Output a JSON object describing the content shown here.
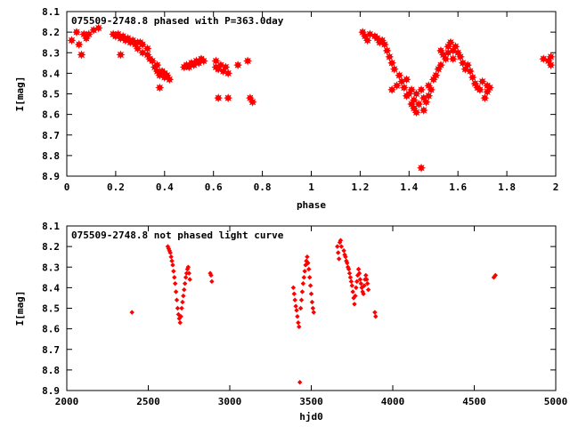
{
  "chart_data": [
    {
      "type": "scatter",
      "title": "075509-2748.8 phased with P=363.0day",
      "xlabel": "phase",
      "ylabel": "I[mag]",
      "xlim": [
        0,
        2
      ],
      "ylim": [
        8.1,
        8.9
      ],
      "y_inverted": true,
      "xticks": [
        "0",
        "0.2",
        "0.4",
        "0.6",
        "0.8",
        "1",
        "1.2",
        "1.4",
        "1.6",
        "1.8",
        "2"
      ],
      "yticks": [
        "8.1",
        "8.2",
        "8.3",
        "8.4",
        "8.5",
        "8.6",
        "8.7",
        "8.8",
        "8.9"
      ],
      "grid": false,
      "marker": "star",
      "color": "#ff0000",
      "points": [
        [
          0.02,
          8.24
        ],
        [
          0.04,
          8.2
        ],
        [
          0.05,
          8.26
        ],
        [
          0.06,
          8.31
        ],
        [
          0.07,
          8.21
        ],
        [
          0.08,
          8.23
        ],
        [
          0.09,
          8.21
        ],
        [
          0.11,
          8.19
        ],
        [
          0.13,
          8.18
        ],
        [
          0.19,
          8.21
        ],
        [
          0.2,
          8.22
        ],
        [
          0.21,
          8.21
        ],
        [
          0.22,
          8.23
        ],
        [
          0.22,
          8.31
        ],
        [
          0.23,
          8.22
        ],
        [
          0.24,
          8.24
        ],
        [
          0.25,
          8.23
        ],
        [
          0.26,
          8.25
        ],
        [
          0.27,
          8.24
        ],
        [
          0.28,
          8.26
        ],
        [
          0.29,
          8.25
        ],
        [
          0.29,
          8.28
        ],
        [
          0.3,
          8.25
        ],
        [
          0.31,
          8.26
        ],
        [
          0.31,
          8.3
        ],
        [
          0.33,
          8.28
        ],
        [
          0.33,
          8.31
        ],
        [
          0.34,
          8.33
        ],
        [
          0.35,
          8.34
        ],
        [
          0.36,
          8.37
        ],
        [
          0.37,
          8.36
        ],
        [
          0.37,
          8.39
        ],
        [
          0.38,
          8.41
        ],
        [
          0.38,
          8.47
        ],
        [
          0.39,
          8.39
        ],
        [
          0.4,
          8.4
        ],
        [
          0.4,
          8.42
        ],
        [
          0.41,
          8.41
        ],
        [
          0.42,
          8.43
        ],
        [
          0.48,
          8.37
        ],
        [
          0.49,
          8.36
        ],
        [
          0.5,
          8.37
        ],
        [
          0.51,
          8.35
        ],
        [
          0.52,
          8.36
        ],
        [
          0.53,
          8.34
        ],
        [
          0.54,
          8.35
        ],
        [
          0.55,
          8.33
        ],
        [
          0.56,
          8.34
        ],
        [
          0.61,
          8.34
        ],
        [
          0.61,
          8.37
        ],
        [
          0.62,
          8.38
        ],
        [
          0.62,
          8.52
        ],
        [
          0.63,
          8.36
        ],
        [
          0.64,
          8.39
        ],
        [
          0.65,
          8.37
        ],
        [
          0.66,
          8.4
        ],
        [
          0.66,
          8.52
        ],
        [
          0.7,
          8.36
        ],
        [
          0.74,
          8.34
        ],
        [
          0.75,
          8.52
        ],
        [
          0.76,
          8.54
        ],
        [
          1.21,
          8.2
        ],
        [
          1.22,
          8.22
        ],
        [
          1.23,
          8.24
        ],
        [
          1.24,
          8.21
        ],
        [
          1.26,
          8.22
        ],
        [
          1.27,
          8.23
        ],
        [
          1.28,
          8.25
        ],
        [
          1.29,
          8.24
        ],
        [
          1.3,
          8.26
        ],
        [
          1.31,
          8.29
        ],
        [
          1.32,
          8.32
        ],
        [
          1.33,
          8.35
        ],
        [
          1.33,
          8.48
        ],
        [
          1.34,
          8.38
        ],
        [
          1.35,
          8.46
        ],
        [
          1.36,
          8.41
        ],
        [
          1.37,
          8.44
        ],
        [
          1.38,
          8.47
        ],
        [
          1.39,
          8.43
        ],
        [
          1.39,
          8.51
        ],
        [
          1.4,
          8.5
        ],
        [
          1.41,
          8.48
        ],
        [
          1.41,
          8.55
        ],
        [
          1.42,
          8.53
        ],
        [
          1.42,
          8.57
        ],
        [
          1.43,
          8.5
        ],
        [
          1.43,
          8.59
        ],
        [
          1.44,
          8.55
        ],
        [
          1.45,
          8.48
        ],
        [
          1.45,
          8.86
        ],
        [
          1.46,
          8.52
        ],
        [
          1.46,
          8.58
        ],
        [
          1.47,
          8.54
        ],
        [
          1.48,
          8.46
        ],
        [
          1.48,
          8.51
        ],
        [
          1.49,
          8.48
        ],
        [
          1.5,
          8.43
        ],
        [
          1.51,
          8.41
        ],
        [
          1.52,
          8.38
        ],
        [
          1.53,
          8.36
        ],
        [
          1.53,
          8.29
        ],
        [
          1.54,
          8.31
        ],
        [
          1.55,
          8.33
        ],
        [
          1.56,
          8.27
        ],
        [
          1.56,
          8.3
        ],
        [
          1.57,
          8.25
        ],
        [
          1.58,
          8.29
        ],
        [
          1.58,
          8.33
        ],
        [
          1.59,
          8.27
        ],
        [
          1.6,
          8.3
        ],
        [
          1.61,
          8.32
        ],
        [
          1.62,
          8.35
        ],
        [
          1.63,
          8.38
        ],
        [
          1.64,
          8.36
        ],
        [
          1.65,
          8.39
        ],
        [
          1.66,
          8.42
        ],
        [
          1.67,
          8.45
        ],
        [
          1.68,
          8.47
        ],
        [
          1.69,
          8.48
        ],
        [
          1.7,
          8.44
        ],
        [
          1.71,
          8.52
        ],
        [
          1.72,
          8.46
        ],
        [
          1.72,
          8.49
        ],
        [
          1.73,
          8.47
        ],
        [
          1.95,
          8.33
        ],
        [
          1.97,
          8.34
        ],
        [
          1.98,
          8.32
        ],
        [
          1.98,
          8.36
        ]
      ]
    },
    {
      "type": "scatter",
      "title": "075509-2748.8 not phased light curve",
      "xlabel": "hjd0",
      "ylabel": "I[mag]",
      "xlim": [
        2000,
        5000
      ],
      "ylim": [
        8.1,
        8.9
      ],
      "y_inverted": true,
      "xticks": [
        "2000",
        "2500",
        "3000",
        "3500",
        "4000",
        "4500",
        "5000"
      ],
      "yticks": [
        "8.1",
        "8.2",
        "8.3",
        "8.4",
        "8.5",
        "8.6",
        "8.7",
        "8.8",
        "8.9"
      ],
      "grid": false,
      "marker": "diamond",
      "color": "#ff0000",
      "points": [
        [
          2400,
          8.52
        ],
        [
          2620,
          8.2
        ],
        [
          2625,
          8.21
        ],
        [
          2630,
          8.22
        ],
        [
          2635,
          8.23
        ],
        [
          2640,
          8.25
        ],
        [
          2645,
          8.27
        ],
        [
          2650,
          8.29
        ],
        [
          2655,
          8.32
        ],
        [
          2660,
          8.35
        ],
        [
          2665,
          8.38
        ],
        [
          2670,
          8.42
        ],
        [
          2675,
          8.46
        ],
        [
          2680,
          8.5
        ],
        [
          2685,
          8.53
        ],
        [
          2690,
          8.55
        ],
        [
          2695,
          8.57
        ],
        [
          2700,
          8.54
        ],
        [
          2705,
          8.5
        ],
        [
          2710,
          8.47
        ],
        [
          2715,
          8.44
        ],
        [
          2720,
          8.41
        ],
        [
          2725,
          8.38
        ],
        [
          2730,
          8.35
        ],
        [
          2735,
          8.33
        ],
        [
          2740,
          8.31
        ],
        [
          2745,
          8.3
        ],
        [
          2750,
          8.33
        ],
        [
          2755,
          8.36
        ],
        [
          2880,
          8.33
        ],
        [
          2885,
          8.34
        ],
        [
          2890,
          8.37
        ],
        [
          3390,
          8.4
        ],
        [
          3395,
          8.43
        ],
        [
          3400,
          8.46
        ],
        [
          3405,
          8.49
        ],
        [
          3410,
          8.51
        ],
        [
          3415,
          8.54
        ],
        [
          3420,
          8.57
        ],
        [
          3425,
          8.59
        ],
        [
          3430,
          8.86
        ],
        [
          3435,
          8.5
        ],
        [
          3440,
          8.46
        ],
        [
          3445,
          8.42
        ],
        [
          3450,
          8.38
        ],
        [
          3455,
          8.35
        ],
        [
          3460,
          8.32
        ],
        [
          3465,
          8.29
        ],
        [
          3470,
          8.27
        ],
        [
          3475,
          8.25
        ],
        [
          3480,
          8.28
        ],
        [
          3485,
          8.31
        ],
        [
          3490,
          8.35
        ],
        [
          3495,
          8.39
        ],
        [
          3500,
          8.43
        ],
        [
          3505,
          8.47
        ],
        [
          3510,
          8.5
        ],
        [
          3515,
          8.52
        ],
        [
          3660,
          8.2
        ],
        [
          3665,
          8.23
        ],
        [
          3670,
          8.26
        ],
        [
          3675,
          8.18
        ],
        [
          3680,
          8.17
        ],
        [
          3685,
          8.2
        ],
        [
          3700,
          8.22
        ],
        [
          3705,
          8.24
        ],
        [
          3710,
          8.25
        ],
        [
          3715,
          8.27
        ],
        [
          3720,
          8.28
        ],
        [
          3725,
          8.3
        ],
        [
          3730,
          8.31
        ],
        [
          3735,
          8.33
        ],
        [
          3740,
          8.35
        ],
        [
          3745,
          8.37
        ],
        [
          3750,
          8.39
        ],
        [
          3755,
          8.42
        ],
        [
          3760,
          8.45
        ],
        [
          3765,
          8.48
        ],
        [
          3770,
          8.44
        ],
        [
          3775,
          8.4
        ],
        [
          3780,
          8.37
        ],
        [
          3785,
          8.34
        ],
        [
          3790,
          8.31
        ],
        [
          3795,
          8.33
        ],
        [
          3800,
          8.36
        ],
        [
          3805,
          8.38
        ],
        [
          3810,
          8.4
        ],
        [
          3815,
          8.42
        ],
        [
          3820,
          8.43
        ],
        [
          3825,
          8.39
        ],
        [
          3830,
          8.36
        ],
        [
          3835,
          8.34
        ],
        [
          3840,
          8.36
        ],
        [
          3845,
          8.38
        ],
        [
          3850,
          8.41
        ],
        [
          3890,
          8.52
        ],
        [
          3895,
          8.54
        ],
        [
          4620,
          8.35
        ],
        [
          4630,
          8.34
        ]
      ]
    }
  ]
}
